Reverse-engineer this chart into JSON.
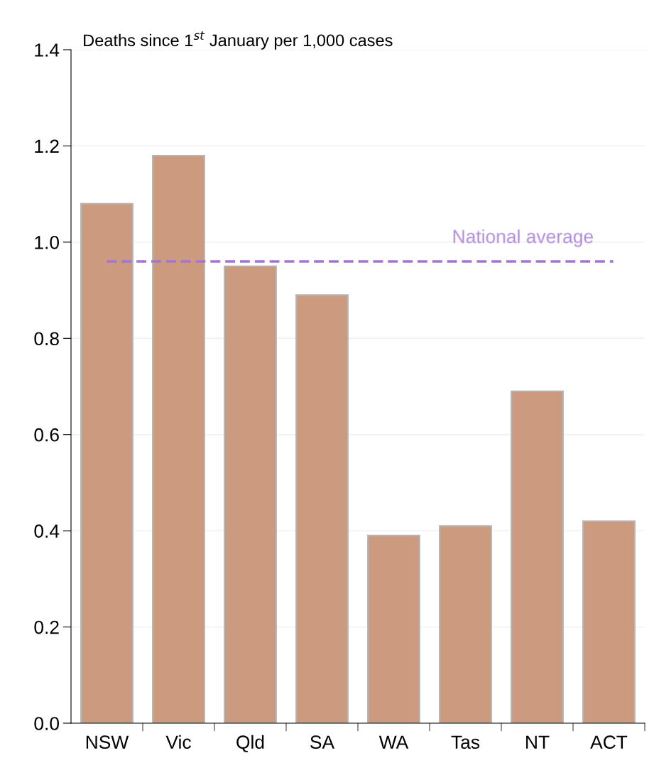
{
  "chart_data": {
    "type": "bar",
    "ylabel": "Deaths since 1$^{st}$ January per 1,000 cases",
    "categories": [
      "NSW",
      "Vic",
      "Qld",
      "SA",
      "WA",
      "Tas",
      "NT",
      "ACT"
    ],
    "values": [
      1.08,
      1.18,
      0.95,
      0.89,
      0.39,
      0.41,
      0.69,
      0.42
    ],
    "color": "#cc9a7e",
    "ylim": [
      0,
      1.4
    ],
    "yticks": [
      {
        "value": 0,
        "label": "0.0"
      },
      {
        "value": 0.2,
        "label": "0.2"
      },
      {
        "value": 0.4,
        "label": "0.4"
      },
      {
        "value": 0.6,
        "label": "0.6"
      },
      {
        "value": 0.8,
        "label": "0.8"
      },
      {
        "value": 1.0,
        "label": "1.0"
      },
      {
        "value": 1.2,
        "label": "1.2"
      },
      {
        "value": 1.4,
        "label": "1.4"
      }
    ],
    "grid": "y",
    "ref_lines": [
      {
        "axis": "y",
        "value": 0.96,
        "label": "National average",
        "color": "#a374d5",
        "line_style": "dashed"
      }
    ]
  }
}
